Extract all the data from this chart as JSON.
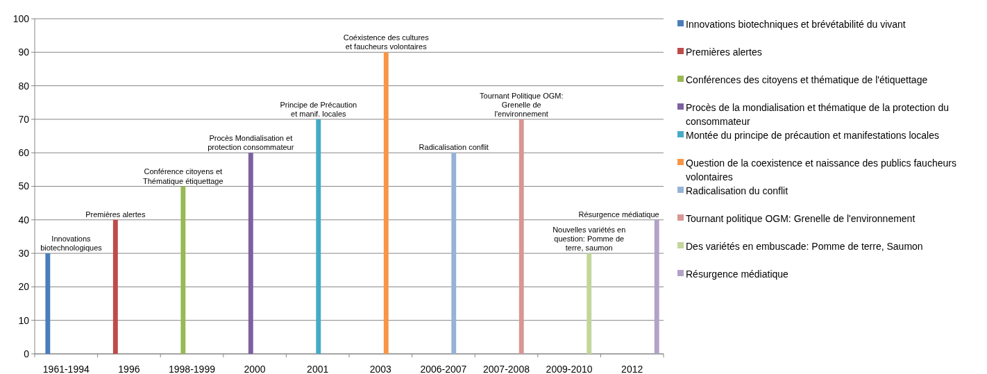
{
  "chart_data": {
    "type": "bar",
    "categories": [
      "1961-1994",
      "1996",
      "1998-1999",
      "2000",
      "2001",
      "2003",
      "2006-2007",
      "2007-2008",
      "2009-2010",
      "2012"
    ],
    "series": [
      {
        "name": "Innovations biotechniques et brévétabilité du vivant",
        "color": "#4a7ebb",
        "values": [
          30,
          null,
          null,
          null,
          null,
          null,
          null,
          null,
          null,
          null
        ]
      },
      {
        "name": "Premières alertes",
        "color": "#be4b48",
        "values": [
          null,
          40,
          null,
          null,
          null,
          null,
          null,
          null,
          null,
          null
        ]
      },
      {
        "name": "Conférences des citoyens et thématique de l'étiquettage",
        "color": "#98b954",
        "values": [
          null,
          null,
          50,
          null,
          null,
          null,
          null,
          null,
          null,
          null
        ]
      },
      {
        "name": "Procès de la mondialisation  et thématique de la protection du consommateur",
        "color": "#7d60a0",
        "values": [
          null,
          null,
          null,
          60,
          null,
          null,
          null,
          null,
          null,
          null
        ]
      },
      {
        "name": "Montée du principe de précaution et manifestations  locales",
        "color": "#46aac5",
        "values": [
          null,
          null,
          null,
          null,
          70,
          null,
          null,
          null,
          null,
          null
        ]
      },
      {
        "name": "Question de la coexistence et naissance des publics faucheurs volontaires",
        "color": "#f79646",
        "values": [
          null,
          null,
          null,
          null,
          null,
          90,
          null,
          null,
          null,
          null
        ]
      },
      {
        "name": "Radicalisation du conflit",
        "color": "#95b3d7",
        "values": [
          null,
          null,
          null,
          null,
          null,
          null,
          60,
          null,
          null,
          null
        ]
      },
      {
        "name": "Tournant politique OGM:  Grenelle de l'environnement",
        "color": "#d99694",
        "values": [
          null,
          null,
          null,
          null,
          null,
          null,
          null,
          70,
          null,
          null
        ]
      },
      {
        "name": "Des variétés en embuscade: Pomme de terre, Saumon",
        "color": "#c3d69b",
        "values": [
          null,
          null,
          null,
          null,
          null,
          null,
          null,
          null,
          30,
          null
        ]
      },
      {
        "name": "Résurgence médiatique",
        "color": "#b2a2c7",
        "values": [
          null,
          null,
          null,
          null,
          null,
          null,
          null,
          null,
          null,
          40
        ]
      }
    ],
    "ylim": [
      0,
      100
    ],
    "yticks": [
      0,
      10,
      20,
      30,
      40,
      50,
      60,
      70,
      80,
      90,
      100
    ],
    "grid": "y",
    "legend": "right",
    "annotations": [
      "Innovations biotechnologiques",
      "Premières alertes",
      "Conférence citoyens et Thématique étiquettage",
      "Procès Mondialisation et protection consommateur",
      "Principe de Précaution et manif. locales",
      "Coéxistence des cultures et faucheurs volontaires",
      "Radicalisation conflit",
      "Tournant Politique OGM: Grenelle de l'environnement",
      "Nouvelles variétés en question: Pomme de terre, saumon",
      "Résurgence médiatique"
    ]
  }
}
